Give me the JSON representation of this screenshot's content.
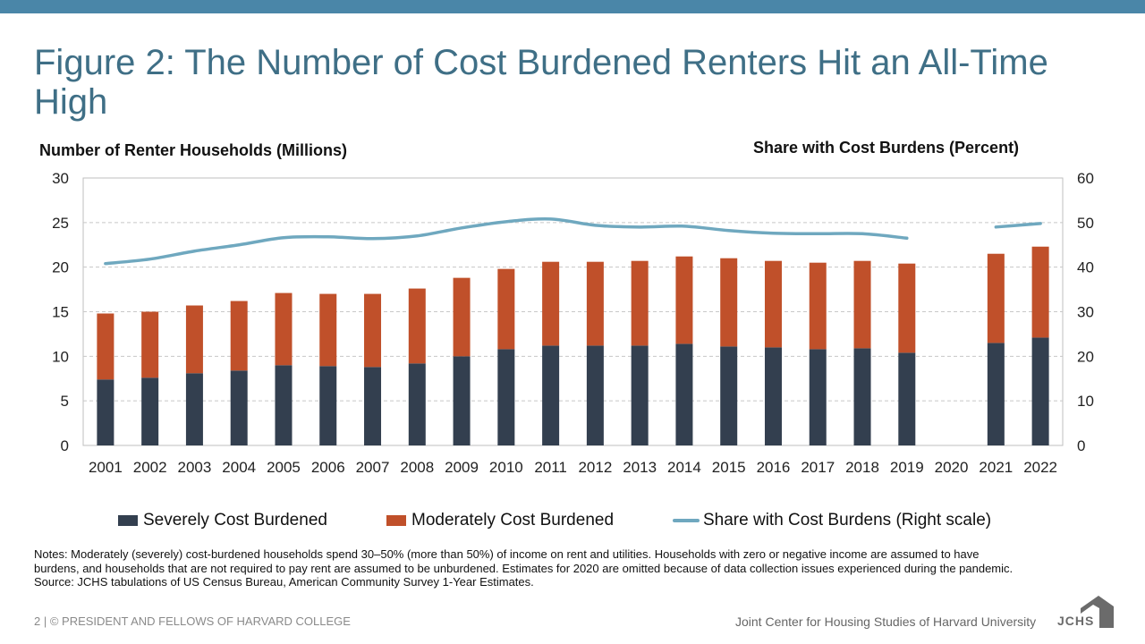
{
  "title": "Figure 2: The Number of Cost Burdened Renters Hit an All-Time High",
  "chart_data": {
    "type": "bar",
    "stacked": true,
    "categories": [
      "2001",
      "2002",
      "2003",
      "2004",
      "2005",
      "2006",
      "2007",
      "2008",
      "2009",
      "2010",
      "2011",
      "2012",
      "2013",
      "2014",
      "2015",
      "2016",
      "2017",
      "2018",
      "2019",
      "2020",
      "2021",
      "2022"
    ],
    "series": [
      {
        "name": "Severely Cost Burdened",
        "axis": "left",
        "color": "#333f4f",
        "values": [
          7.4,
          7.6,
          8.1,
          8.4,
          9.0,
          8.9,
          8.8,
          9.2,
          10.0,
          10.8,
          11.2,
          11.2,
          11.2,
          11.4,
          11.1,
          11.0,
          10.8,
          10.9,
          10.4,
          null,
          11.5,
          12.1
        ]
      },
      {
        "name": "Moderately Cost Burdened",
        "axis": "left",
        "color": "#c0502a",
        "values": [
          7.4,
          7.4,
          7.6,
          7.8,
          8.1,
          8.1,
          8.2,
          8.4,
          8.8,
          9.0,
          9.4,
          9.4,
          9.5,
          9.8,
          9.9,
          9.7,
          9.7,
          9.8,
          10.0,
          null,
          10.0,
          10.2
        ]
      },
      {
        "name": "Share with Cost Burdens (Right scale)",
        "type": "line",
        "axis": "right",
        "color": "#6fa8bf",
        "values": [
          40.8,
          41.8,
          43.6,
          45.0,
          46.6,
          46.8,
          46.4,
          47.0,
          48.8,
          50.2,
          50.8,
          49.4,
          49.0,
          49.2,
          48.2,
          47.6,
          47.5,
          47.5,
          46.5,
          null,
          49.0,
          49.8
        ]
      }
    ],
    "ylabel": "Number of Renter Households (Millions)",
    "y2label": "Share with Cost Burdens (Percent)",
    "ylim": [
      0,
      30
    ],
    "y2lim": [
      0,
      60
    ],
    "yticks": [
      0,
      5,
      10,
      15,
      20,
      25,
      30
    ],
    "y2ticks": [
      0,
      10,
      20,
      30,
      40,
      50,
      60
    ],
    "grid": true,
    "legend": "bottom"
  },
  "notes": [
    "Notes: Moderately (severely) cost-burdened households spend 30–50% (more than 50%) of income on rent and utilities. Households with zero or negative income are assumed to have burdens, and households that are not required to pay rent are assumed to be unburdened. Estimates for 2020 are omitted because of data collection issues experienced during the pandemic.",
    "Source: JCHS tabulations of US Census Bureau, American Community Survey 1-Year Estimates."
  ],
  "footer": {
    "left": "2 | © PRESIDENT AND FELLOWS OF HARVARD COLLEGE",
    "right": "Joint Center for Housing Studies of Harvard University",
    "logo": "JCHS"
  }
}
